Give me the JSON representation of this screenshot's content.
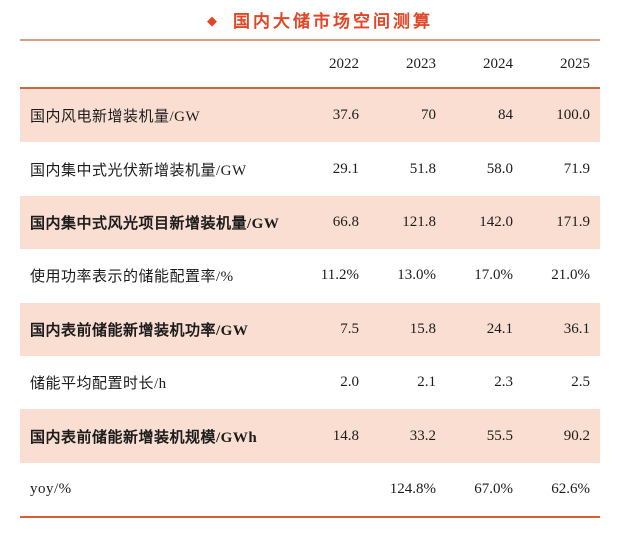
{
  "page_title": {
    "bullet": "◆",
    "text": "国内大储市场空间测算"
  },
  "colors": {
    "accent": "#E14727",
    "top_rule": "#D9A183",
    "header_rule": "#C8693F",
    "bottom_rule": "#D75F30",
    "row_shade": "#F9DED1",
    "text": "#1C1C1C"
  },
  "chart_data": {
    "type": "table",
    "title": "国内大储市场空间测算",
    "col_headers": [
      "2022",
      "2023",
      "2024",
      "2025"
    ],
    "rows": [
      {
        "label": "国内风电新增装机量/GW",
        "values": [
          "37.6",
          "70",
          "84",
          "100.0"
        ],
        "shaded": true,
        "bold": false
      },
      {
        "label": "国内集中式光伏新增装机量/GW",
        "values": [
          "29.1",
          "51.8",
          "58.0",
          "71.9"
        ],
        "shaded": false,
        "bold": false
      },
      {
        "label": "国内集中式风光项目新增装机量/GW",
        "values": [
          "66.8",
          "121.8",
          "142.0",
          "171.9"
        ],
        "shaded": true,
        "bold": true
      },
      {
        "label": "使用功率表示的储能配置率/%",
        "values": [
          "11.2%",
          "13.0%",
          "17.0%",
          "21.0%"
        ],
        "shaded": false,
        "bold": false
      },
      {
        "label": "国内表前储能新增装机功率/GW",
        "values": [
          "7.5",
          "15.8",
          "24.1",
          "36.1"
        ],
        "shaded": true,
        "bold": true
      },
      {
        "label": "储能平均配置时长/h",
        "values": [
          "2.0",
          "2.1",
          "2.3",
          "2.5"
        ],
        "shaded": false,
        "bold": false
      },
      {
        "label": "国内表前储能新增装机规模/GWh",
        "values": [
          "14.8",
          "33.2",
          "55.5",
          "90.2"
        ],
        "shaded": true,
        "bold": true
      },
      {
        "label": "yoy/%",
        "values": [
          "",
          "124.8%",
          "67.0%",
          "62.6%"
        ],
        "shaded": false,
        "bold": false
      }
    ]
  }
}
